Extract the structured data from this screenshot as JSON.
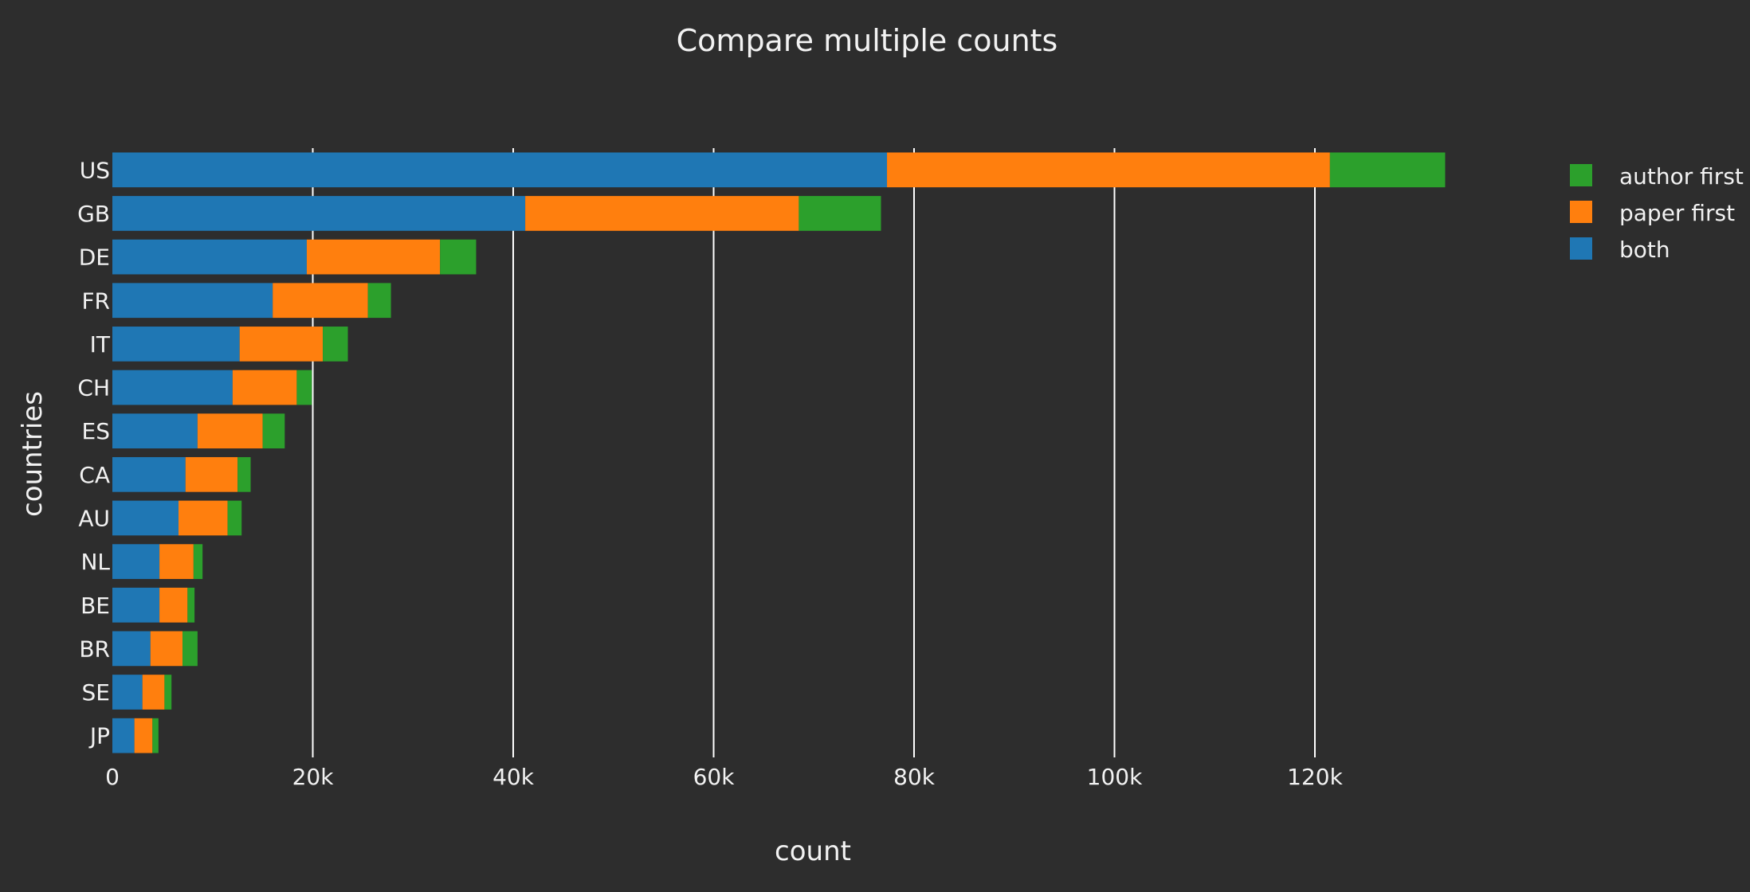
{
  "chart_data": {
    "type": "bar",
    "orientation": "horizontal",
    "stacked": true,
    "title": "Compare multiple counts",
    "xlabel": "count",
    "ylabel": "countries",
    "categories": [
      "US",
      "GB",
      "DE",
      "FR",
      "IT",
      "CH",
      "ES",
      "CA",
      "AU",
      "NL",
      "BE",
      "BR",
      "SE",
      "JP"
    ],
    "series": [
      {
        "name": "both",
        "color": "#1f77b4",
        "values": [
          77300,
          41200,
          19400,
          16000,
          12700,
          12000,
          8500,
          7300,
          6600,
          4700,
          4700,
          3800,
          3000,
          2200
        ]
      },
      {
        "name": "paper first",
        "color": "#ff7f0e",
        "values": [
          44200,
          27300,
          13300,
          9500,
          8300,
          6400,
          6500,
          5200,
          4900,
          3400,
          2800,
          3200,
          2200,
          1800
        ]
      },
      {
        "name": "author first",
        "color": "#2ca02c",
        "values": [
          11500,
          8200,
          3600,
          2300,
          2500,
          1500,
          2200,
          1300,
          1400,
          900,
          700,
          1500,
          700,
          600
        ]
      }
    ],
    "legend_order": [
      "author first",
      "paper first",
      "both"
    ],
    "legend_position": "top-right",
    "xlim": [
      0,
      133000
    ],
    "xticks": [
      0,
      20000,
      40000,
      60000,
      80000,
      100000,
      120000
    ],
    "xtick_labels": [
      "0",
      "20k",
      "40k",
      "60k",
      "80k",
      "100k",
      "120k"
    ],
    "grid": true,
    "colors": {
      "background": "#2d2d2d",
      "text": "#f2f2f2",
      "grid": "#ffffff"
    }
  }
}
